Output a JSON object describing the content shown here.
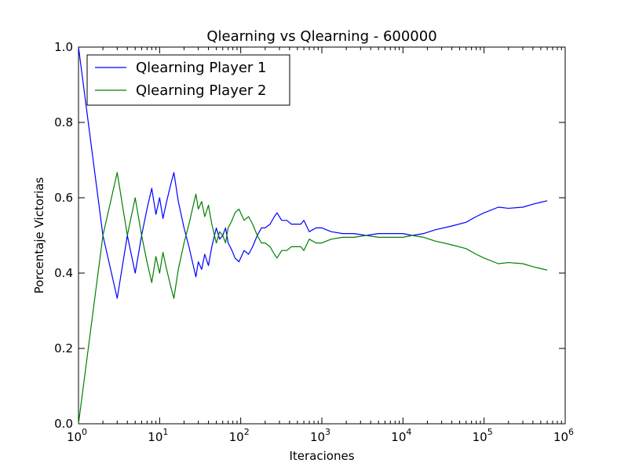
{
  "chart_data": {
    "type": "line",
    "title": "Qlearning vs Qlearning - 600000",
    "xlabel": "Iteraciones",
    "ylabel": "Porcentaje Victorias",
    "xscale": "log",
    "xlim": [
      1,
      1000000
    ],
    "ylim": [
      0.0,
      1.0
    ],
    "grid": false,
    "legend_position": "top-left",
    "x_ticks": [
      {
        "value": 1,
        "base": "10",
        "exp": "0"
      },
      {
        "value": 10,
        "base": "10",
        "exp": "1"
      },
      {
        "value": 100,
        "base": "10",
        "exp": "2"
      },
      {
        "value": 1000,
        "base": "10",
        "exp": "3"
      },
      {
        "value": 10000,
        "base": "10",
        "exp": "4"
      },
      {
        "value": 100000,
        "base": "10",
        "exp": "5"
      },
      {
        "value": 1000000,
        "base": "10",
        "exp": "6"
      }
    ],
    "y_ticks": [
      {
        "value": 0.0,
        "label": "0.0"
      },
      {
        "value": 0.2,
        "label": "0.2"
      },
      {
        "value": 0.4,
        "label": "0.4"
      },
      {
        "value": 0.6,
        "label": "0.6"
      },
      {
        "value": 0.8,
        "label": "0.8"
      },
      {
        "value": 1.0,
        "label": "1.0"
      }
    ],
    "series": [
      {
        "name": "Qlearning Player 1",
        "color": "#0000ff",
        "points": [
          [
            1,
            1.0
          ],
          [
            2,
            0.5
          ],
          [
            3,
            0.333
          ],
          [
            4,
            0.5
          ],
          [
            5,
            0.4
          ],
          [
            6,
            0.5
          ],
          [
            7,
            0.571
          ],
          [
            8,
            0.625
          ],
          [
            9,
            0.556
          ],
          [
            10,
            0.6
          ],
          [
            11,
            0.545
          ],
          [
            12,
            0.583
          ],
          [
            13,
            0.615
          ],
          [
            14,
            0.643
          ],
          [
            15,
            0.667
          ],
          [
            17,
            0.59
          ],
          [
            20,
            0.52
          ],
          [
            23,
            0.47
          ],
          [
            26,
            0.42
          ],
          [
            28,
            0.39
          ],
          [
            30,
            0.43
          ],
          [
            33,
            0.41
          ],
          [
            36,
            0.45
          ],
          [
            40,
            0.42
          ],
          [
            44,
            0.47
          ],
          [
            50,
            0.52
          ],
          [
            55,
            0.49
          ],
          [
            60,
            0.5
          ],
          [
            65,
            0.52
          ],
          [
            70,
            0.48
          ],
          [
            78,
            0.46
          ],
          [
            85,
            0.44
          ],
          [
            95,
            0.43
          ],
          [
            110,
            0.46
          ],
          [
            125,
            0.45
          ],
          [
            140,
            0.47
          ],
          [
            160,
            0.5
          ],
          [
            180,
            0.52
          ],
          [
            200,
            0.52
          ],
          [
            230,
            0.53
          ],
          [
            260,
            0.55
          ],
          [
            280,
            0.56
          ],
          [
            320,
            0.54
          ],
          [
            370,
            0.54
          ],
          [
            420,
            0.53
          ],
          [
            480,
            0.53
          ],
          [
            550,
            0.53
          ],
          [
            600,
            0.54
          ],
          [
            700,
            0.51
          ],
          [
            850,
            0.52
          ],
          [
            1000,
            0.52
          ],
          [
            1300,
            0.51
          ],
          [
            1800,
            0.505
          ],
          [
            2500,
            0.505
          ],
          [
            3500,
            0.5
          ],
          [
            5000,
            0.505
          ],
          [
            7000,
            0.505
          ],
          [
            10000,
            0.505
          ],
          [
            13000,
            0.5
          ],
          [
            18000,
            0.505
          ],
          [
            25000,
            0.515
          ],
          [
            40000,
            0.525
          ],
          [
            60000,
            0.535
          ],
          [
            80000,
            0.55
          ],
          [
            100000,
            0.56
          ],
          [
            150000,
            0.575
          ],
          [
            200000,
            0.572
          ],
          [
            300000,
            0.575
          ],
          [
            400000,
            0.583
          ],
          [
            500000,
            0.588
          ],
          [
            600000,
            0.592
          ]
        ]
      },
      {
        "name": "Qlearning Player 2",
        "color": "#008000",
        "points": [
          [
            1,
            0.0
          ],
          [
            2,
            0.5
          ],
          [
            3,
            0.667
          ],
          [
            4,
            0.5
          ],
          [
            5,
            0.6
          ],
          [
            6,
            0.5
          ],
          [
            7,
            0.429
          ],
          [
            8,
            0.375
          ],
          [
            9,
            0.444
          ],
          [
            10,
            0.4
          ],
          [
            11,
            0.455
          ],
          [
            12,
            0.417
          ],
          [
            13,
            0.385
          ],
          [
            14,
            0.357
          ],
          [
            15,
            0.333
          ],
          [
            17,
            0.41
          ],
          [
            20,
            0.48
          ],
          [
            23,
            0.53
          ],
          [
            26,
            0.58
          ],
          [
            28,
            0.61
          ],
          [
            30,
            0.57
          ],
          [
            33,
            0.59
          ],
          [
            36,
            0.55
          ],
          [
            40,
            0.58
          ],
          [
            44,
            0.53
          ],
          [
            50,
            0.48
          ],
          [
            55,
            0.51
          ],
          [
            60,
            0.5
          ],
          [
            65,
            0.48
          ],
          [
            70,
            0.52
          ],
          [
            78,
            0.54
          ],
          [
            85,
            0.56
          ],
          [
            95,
            0.57
          ],
          [
            110,
            0.54
          ],
          [
            125,
            0.55
          ],
          [
            140,
            0.53
          ],
          [
            160,
            0.5
          ],
          [
            180,
            0.48
          ],
          [
            200,
            0.48
          ],
          [
            230,
            0.47
          ],
          [
            260,
            0.45
          ],
          [
            280,
            0.44
          ],
          [
            320,
            0.46
          ],
          [
            370,
            0.46
          ],
          [
            420,
            0.47
          ],
          [
            480,
            0.47
          ],
          [
            550,
            0.47
          ],
          [
            600,
            0.46
          ],
          [
            700,
            0.49
          ],
          [
            850,
            0.48
          ],
          [
            1000,
            0.48
          ],
          [
            1300,
            0.49
          ],
          [
            1800,
            0.495
          ],
          [
            2500,
            0.495
          ],
          [
            3500,
            0.5
          ],
          [
            5000,
            0.495
          ],
          [
            7000,
            0.495
          ],
          [
            10000,
            0.495
          ],
          [
            13000,
            0.5
          ],
          [
            18000,
            0.495
          ],
          [
            25000,
            0.485
          ],
          [
            40000,
            0.475
          ],
          [
            60000,
            0.465
          ],
          [
            80000,
            0.45
          ],
          [
            100000,
            0.44
          ],
          [
            150000,
            0.425
          ],
          [
            200000,
            0.428
          ],
          [
            300000,
            0.425
          ],
          [
            400000,
            0.417
          ],
          [
            500000,
            0.412
          ],
          [
            600000,
            0.408
          ]
        ]
      }
    ]
  }
}
